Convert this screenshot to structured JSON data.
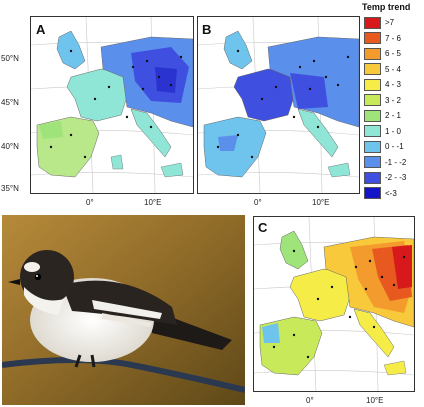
{
  "panels": {
    "a": {
      "label": "A"
    },
    "b": {
      "label": "B"
    },
    "c": {
      "label": "C"
    }
  },
  "axes": {
    "lat_labels": [
      "50°N",
      "45°N",
      "40°N",
      "35°N"
    ],
    "lon_labels": [
      "0°",
      "10°E"
    ]
  },
  "legend": {
    "title": "Temp trend",
    "items": [
      {
        "label": ">7",
        "color": "#d7191c"
      },
      {
        "label": "7 - 6",
        "color": "#e8591f"
      },
      {
        "label": "6 - 5",
        "color": "#f39b2c"
      },
      {
        "label": "5 - 4",
        "color": "#f8c93a"
      },
      {
        "label": "4 - 3",
        "color": "#f5ec47"
      },
      {
        "label": "3 - 2",
        "color": "#c8ea5a"
      },
      {
        "label": "2 - 1",
        "color": "#9fe37b"
      },
      {
        "label": "1 - 0",
        "color": "#8fe6d6"
      },
      {
        "label": "0 - -1",
        "color": "#6ec4ec"
      },
      {
        "label": "-1 - -2",
        "color": "#5b8fec"
      },
      {
        "label": "-2 - -3",
        "color": "#3f4fe0"
      },
      {
        "label": "<-3",
        "color": "#1414c8"
      }
    ]
  },
  "photo": {
    "subject": "bird-photo"
  }
}
